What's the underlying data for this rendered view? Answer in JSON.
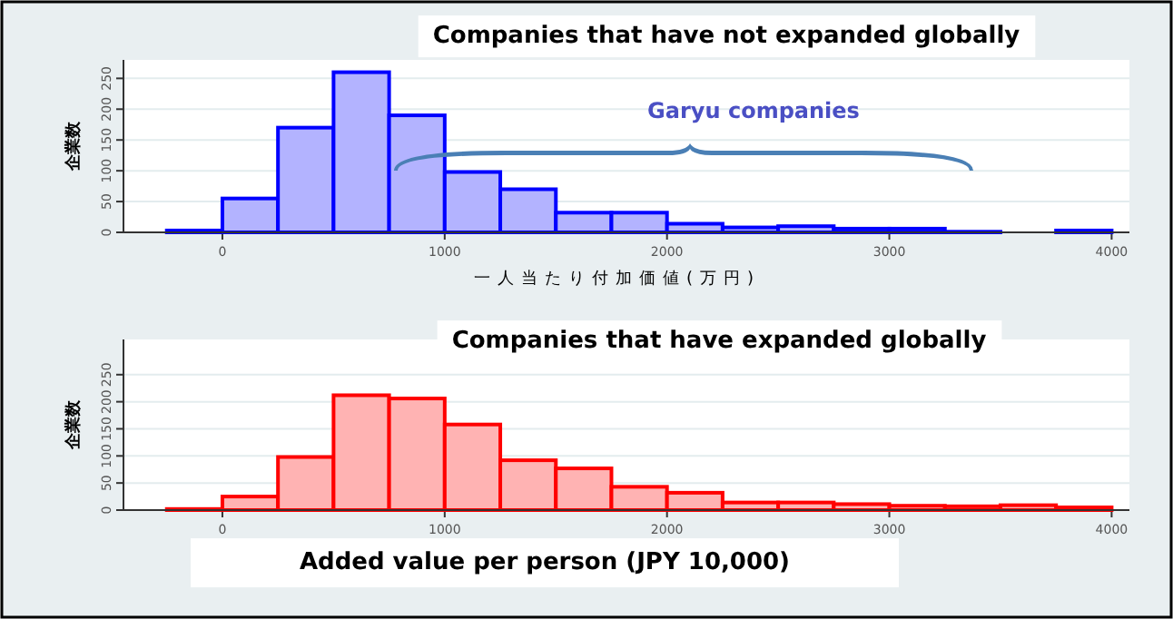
{
  "chart_data": [
    {
      "type": "histogram",
      "title": "Companies that have not expanded globally",
      "xlabel": "一人当たり付加価値(万円)",
      "ylabel": "企業数",
      "bins": [
        -250,
        0,
        250,
        500,
        750,
        1000,
        1250,
        1500,
        1750,
        2000,
        2250,
        2500,
        2750,
        3000,
        3250,
        3500,
        3750,
        4000
      ],
      "values": [
        3,
        55,
        170,
        260,
        190,
        98,
        70,
        32,
        32,
        14,
        8,
        10,
        6,
        6,
        1,
        0,
        3
      ],
      "color": "#0000ff",
      "xlim": [
        -445,
        4080
      ],
      "ylim": [
        0,
        280
      ],
      "xticks": [
        0,
        1000,
        2000,
        3000,
        4000
      ],
      "yticks": [
        0,
        50,
        100,
        150,
        200,
        250
      ],
      "grid": "y",
      "annotations": [
        "Garyu companies"
      ]
    },
    {
      "type": "histogram",
      "title": "Companies that have expanded globally",
      "xlabel": "Added value per person (JPY 10,000)",
      "ylabel": "企業数",
      "bins": [
        -250,
        0,
        250,
        500,
        750,
        1000,
        1250,
        1500,
        1750,
        2000,
        2250,
        2500,
        2750,
        3000,
        3250,
        3500,
        3750,
        4000
      ],
      "values": [
        2,
        25,
        98,
        212,
        206,
        158,
        92,
        77,
        43,
        32,
        14,
        14,
        11,
        8,
        7,
        9,
        5
      ],
      "color": "#ff0000",
      "xlim": [
        -445,
        4080
      ],
      "ylim": [
        0,
        315
      ],
      "xticks": [
        0,
        1000,
        2000,
        3000,
        4000
      ],
      "yticks": [
        0,
        50,
        100,
        150,
        200,
        250
      ],
      "grid": "y"
    }
  ]
}
